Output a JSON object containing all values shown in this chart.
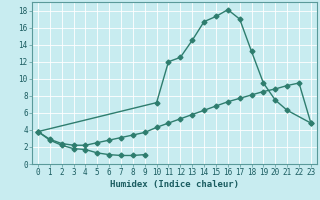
{
  "xlabel": "Humidex (Indice chaleur)",
  "background_color": "#c8ecf0",
  "grid_color": "#ffffff",
  "line_color": "#2e7d6e",
  "xlim": [
    -0.5,
    23.5
  ],
  "ylim": [
    0,
    19
  ],
  "xticks": [
    0,
    1,
    2,
    3,
    4,
    5,
    6,
    7,
    8,
    9,
    10,
    11,
    12,
    13,
    14,
    15,
    16,
    17,
    18,
    19,
    20,
    21,
    22,
    23
  ],
  "yticks": [
    0,
    2,
    4,
    6,
    8,
    10,
    12,
    14,
    16,
    18
  ],
  "line1_x": [
    0,
    1,
    2,
    3,
    4,
    5,
    6,
    7,
    8,
    9
  ],
  "line1_y": [
    3.8,
    2.8,
    2.2,
    1.8,
    1.7,
    1.3,
    1.1,
    1.0,
    1.0,
    1.1
  ],
  "line2_x": [
    0,
    1,
    2,
    3,
    4,
    5,
    6,
    7,
    8,
    9,
    10,
    11,
    12,
    13,
    14,
    15,
    16,
    17,
    18,
    19,
    20,
    21,
    22,
    23
  ],
  "line2_y": [
    3.8,
    2.9,
    2.4,
    2.2,
    2.2,
    2.5,
    2.8,
    3.1,
    3.4,
    3.7,
    4.3,
    4.8,
    5.3,
    5.8,
    6.3,
    6.8,
    7.3,
    7.7,
    8.1,
    8.5,
    8.8,
    9.2,
    9.5,
    4.8
  ],
  "line3_x": [
    0,
    10,
    11,
    12,
    13,
    14,
    15,
    16,
    17,
    18,
    19,
    20,
    21,
    23
  ],
  "line3_y": [
    3.8,
    7.2,
    12.0,
    12.5,
    14.5,
    16.7,
    17.3,
    18.1,
    17.0,
    13.2,
    9.5,
    7.5,
    6.3,
    4.8
  ],
  "marker_size": 2.5,
  "line_width": 1.0,
  "xlabel_fontsize": 6.5,
  "tick_labelsize": 5.5
}
